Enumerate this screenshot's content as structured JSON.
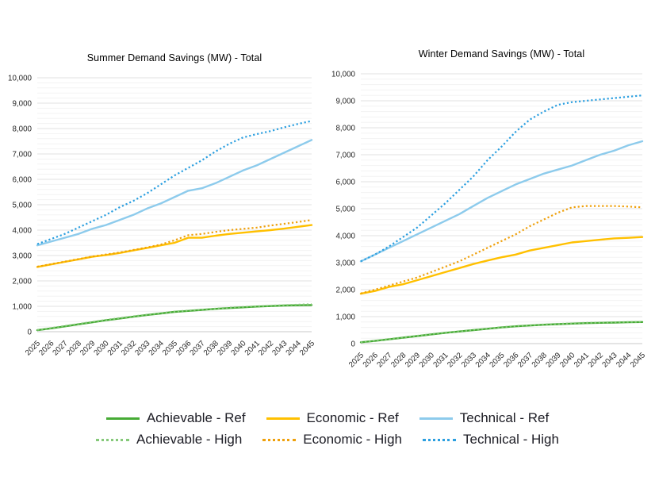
{
  "chart_data": [
    {
      "type": "line",
      "title": "Summer Demand Savings (MW) - Total",
      "xlabel": "",
      "ylabel": "",
      "ylim": [
        0,
        10000
      ],
      "y_major_step": 1000,
      "y_minor_step": 200,
      "grid": "on",
      "years": [
        2025,
        2026,
        2027,
        2028,
        2029,
        2030,
        2031,
        2032,
        2033,
        2034,
        2035,
        2036,
        2037,
        2038,
        2039,
        2040,
        2041,
        2042,
        2043,
        2044,
        2045
      ],
      "series": [
        {
          "name": "Achievable - Ref",
          "dash": "solid",
          "color": "#46ab35",
          "values": [
            60,
            130,
            210,
            290,
            370,
            450,
            520,
            590,
            660,
            720,
            780,
            820,
            860,
            900,
            930,
            960,
            990,
            1010,
            1030,
            1040,
            1050
          ]
        },
        {
          "name": "Economic - Ref",
          "dash": "solid",
          "color": "#ffc000",
          "values": [
            2550,
            2650,
            2750,
            2850,
            2950,
            3020,
            3100,
            3200,
            3300,
            3400,
            3500,
            3700,
            3700,
            3780,
            3850,
            3900,
            3950,
            4000,
            4060,
            4130,
            4200
          ]
        },
        {
          "name": "Technical - Ref",
          "dash": "solid",
          "color": "#8dcbec",
          "values": [
            3400,
            3550,
            3700,
            3850,
            4050,
            4200,
            4400,
            4600,
            4850,
            5050,
            5300,
            5550,
            5650,
            5850,
            6100,
            6350,
            6550,
            6800,
            7050,
            7300,
            7550
          ]
        },
        {
          "name": "Achievable - High",
          "dash": "dotted",
          "color": "#86c97a",
          "values": [
            70,
            145,
            225,
            305,
            385,
            465,
            535,
            605,
            670,
            730,
            790,
            830,
            870,
            910,
            945,
            975,
            1000,
            1025,
            1045,
            1065,
            1080
          ]
        },
        {
          "name": "Economic - High",
          "dash": "dotted",
          "color": "#efa00b",
          "values": [
            2560,
            2660,
            2760,
            2860,
            2960,
            3040,
            3120,
            3220,
            3320,
            3430,
            3600,
            3800,
            3850,
            3930,
            4000,
            4050,
            4100,
            4180,
            4250,
            4320,
            4400
          ]
        },
        {
          "name": "Technical - High",
          "dash": "dotted",
          "color": "#2b9fe0",
          "values": [
            3450,
            3650,
            3850,
            4100,
            4350,
            4600,
            4900,
            5150,
            5450,
            5800,
            6150,
            6450,
            6750,
            7100,
            7400,
            7650,
            7780,
            7900,
            8050,
            8180,
            8300
          ]
        }
      ]
    },
    {
      "type": "line",
      "title": "Winter Demand Savings (MW) - Total",
      "xlabel": "",
      "ylabel": "",
      "ylim": [
        0,
        10000
      ],
      "y_major_step": 1000,
      "y_minor_step": 200,
      "grid": "on",
      "years": [
        2025,
        2026,
        2027,
        2028,
        2029,
        2030,
        2031,
        2032,
        2033,
        2034,
        2035,
        2036,
        2037,
        2038,
        2039,
        2040,
        2041,
        2042,
        2043,
        2044,
        2045
      ],
      "series": [
        {
          "name": "Achievable - Ref",
          "dash": "solid",
          "color": "#46ab35",
          "values": [
            50,
            100,
            160,
            220,
            280,
            340,
            400,
            450,
            500,
            550,
            600,
            640,
            670,
            700,
            720,
            740,
            760,
            770,
            780,
            790,
            800
          ]
        },
        {
          "name": "Economic - Ref",
          "dash": "solid",
          "color": "#ffc000",
          "values": [
            1850,
            1950,
            2100,
            2200,
            2350,
            2500,
            2650,
            2800,
            2950,
            3080,
            3200,
            3300,
            3450,
            3550,
            3650,
            3750,
            3800,
            3850,
            3900,
            3920,
            3950
          ]
        },
        {
          "name": "Technical - Ref",
          "dash": "solid",
          "color": "#8dcbec",
          "values": [
            3050,
            3300,
            3550,
            3800,
            4050,
            4300,
            4550,
            4800,
            5100,
            5400,
            5650,
            5900,
            6100,
            6300,
            6450,
            6600,
            6800,
            7000,
            7150,
            7350,
            7500
          ]
        },
        {
          "name": "Achievable - High",
          "dash": "dotted",
          "color": "#86c97a",
          "values": [
            55,
            110,
            170,
            230,
            290,
            350,
            410,
            460,
            510,
            560,
            610,
            650,
            680,
            710,
            730,
            750,
            770,
            780,
            790,
            800,
            810
          ]
        },
        {
          "name": "Economic - High",
          "dash": "dotted",
          "color": "#efa00b",
          "values": [
            1860,
            2000,
            2150,
            2300,
            2450,
            2650,
            2850,
            3050,
            3300,
            3550,
            3800,
            4050,
            4350,
            4600,
            4850,
            5050,
            5100,
            5100,
            5100,
            5080,
            5050
          ]
        },
        {
          "name": "Technical - High",
          "dash": "dotted",
          "color": "#2b9fe0",
          "values": [
            3050,
            3300,
            3600,
            3950,
            4300,
            4750,
            5200,
            5700,
            6200,
            6800,
            7300,
            7850,
            8300,
            8600,
            8850,
            8950,
            9000,
            9050,
            9100,
            9150,
            9200
          ]
        }
      ]
    }
  ],
  "legend": {
    "items": [
      {
        "label": "Achievable - Ref",
        "color": "#46ab35",
        "dash": "solid"
      },
      {
        "label": "Economic - Ref",
        "color": "#ffc000",
        "dash": "solid"
      },
      {
        "label": "Technical - Ref",
        "color": "#8dcbec",
        "dash": "solid"
      },
      {
        "label": "Achievable - High",
        "color": "#86c97a",
        "dash": "dotted"
      },
      {
        "label": "Economic - High",
        "color": "#efa00b",
        "dash": "dotted"
      },
      {
        "label": "Technical - High",
        "color": "#2b9fe0",
        "dash": "dotted"
      }
    ]
  }
}
